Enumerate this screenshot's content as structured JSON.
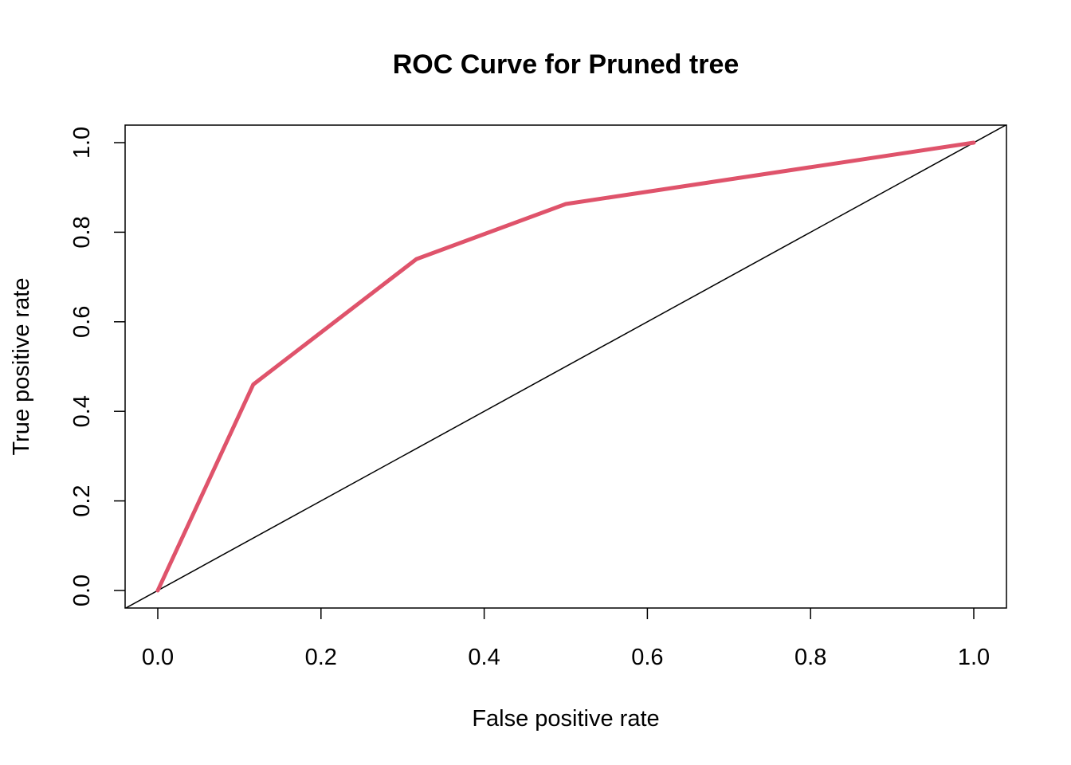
{
  "chart_data": {
    "type": "line",
    "title": "ROC Curve for Pruned tree",
    "xlabel": "False positive rate",
    "ylabel": "True positive rate",
    "xlim": [
      0,
      1
    ],
    "ylim": [
      0,
      1
    ],
    "x_ticks": [
      0,
      0.2,
      0.4,
      0.6,
      0.8,
      1
    ],
    "y_ticks": [
      0,
      0.2,
      0.4,
      0.6,
      0.8,
      1
    ],
    "x_tick_labels": [
      "0.0",
      "0.2",
      "0.4",
      "0.6",
      "0.8",
      "1.0"
    ],
    "y_tick_labels": [
      "0.0",
      "0.2",
      "0.4",
      "0.6",
      "0.8",
      "1.0"
    ],
    "grid": false,
    "series": [
      {
        "color": "#DF536B",
        "x": [
          0,
          0.117,
          0.317,
          0.5,
          1
        ],
        "y": [
          0,
          0.46,
          0.74,
          0.863,
          1
        ]
      }
    ],
    "reference_line": {
      "type": "diagonal",
      "intercept": 0,
      "slope": 1,
      "color": "#000000"
    }
  }
}
